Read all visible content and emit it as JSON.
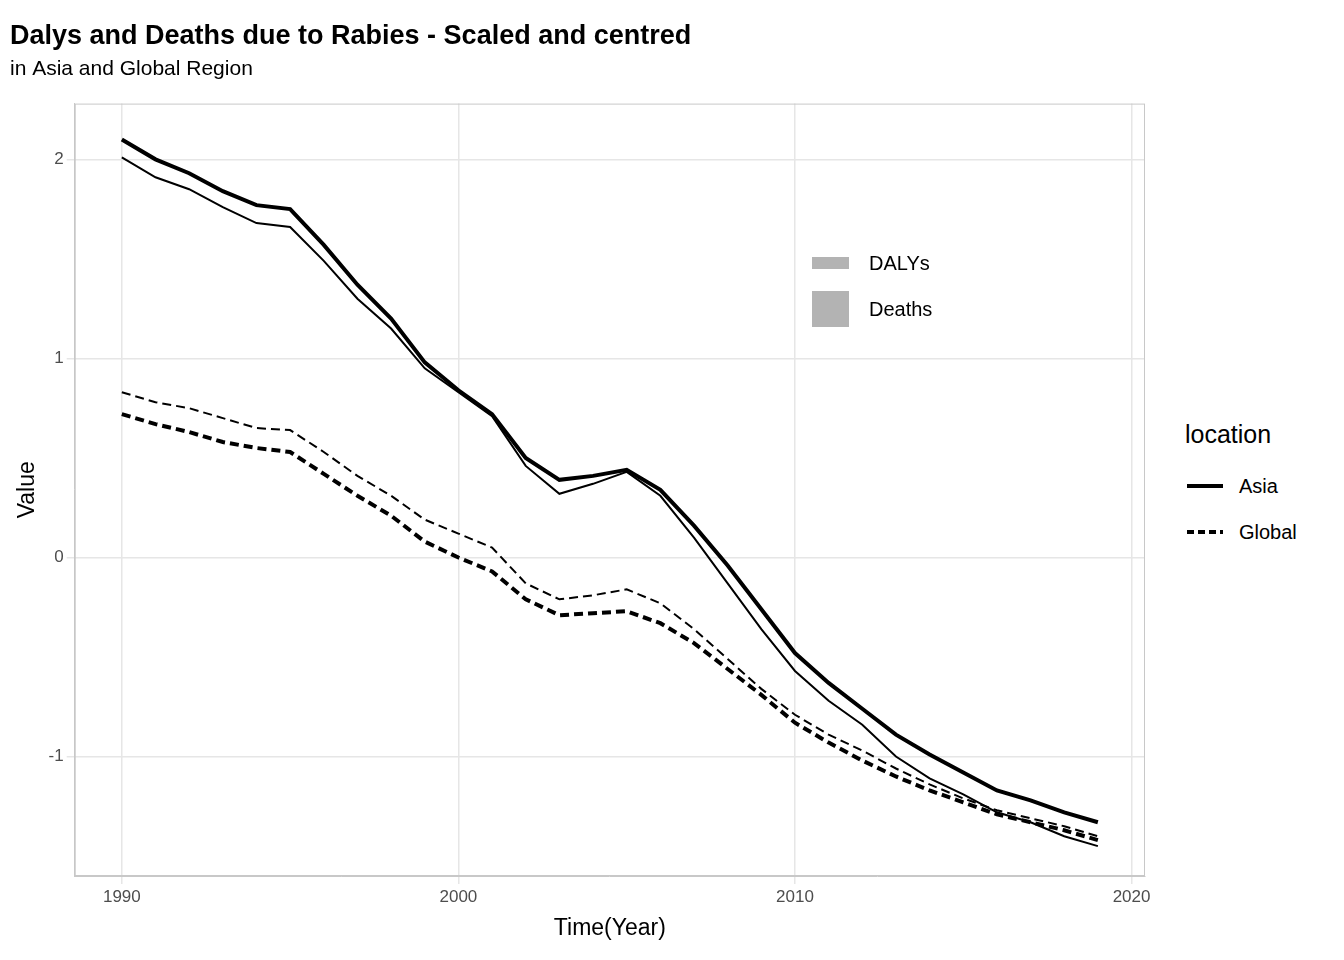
{
  "chart_data": {
    "type": "line",
    "title": "Dalys and Deaths due to Rabies - Scaled and centred",
    "subtitle": "in Asia and Global Region",
    "x_label": "Time(Year)",
    "y_label": "Value",
    "legend_title": "location",
    "legend": "right",
    "groups": [
      "DALYs",
      "Deaths"
    ],
    "x": [
      1990,
      1991,
      1992,
      1993,
      1994,
      1995,
      1996,
      1997,
      1998,
      1999,
      2000,
      2001,
      2002,
      2003,
      2004,
      2005,
      2006,
      2007,
      2008,
      2009,
      2010,
      2011,
      2012,
      2013,
      2014,
      2015,
      2016,
      2017,
      2018,
      2019
    ],
    "series": [
      {
        "name": "Asia",
        "group": "DALYs",
        "color": "#000000",
        "line_style": "solid",
        "values": [
          2.1,
          2.0,
          1.93,
          1.84,
          1.77,
          1.75,
          1.57,
          1.37,
          1.2,
          0.98,
          0.84,
          0.72,
          0.5,
          0.39,
          0.41,
          0.44,
          0.34,
          0.16,
          -0.04,
          -0.26,
          -0.48,
          -0.63,
          -0.76,
          -0.89,
          -0.99,
          -1.08,
          -1.17,
          -1.22,
          -1.28,
          -1.33
        ]
      },
      {
        "name": "Asia",
        "group": "Deaths",
        "color": "#000000",
        "line_style": "solid",
        "values": [
          2.01,
          1.91,
          1.85,
          1.76,
          1.68,
          1.66,
          1.49,
          1.3,
          1.15,
          0.95,
          0.83,
          0.71,
          0.46,
          0.32,
          0.37,
          0.43,
          0.31,
          0.1,
          -0.13,
          -0.36,
          -0.57,
          -0.72,
          -0.84,
          -1.0,
          -1.11,
          -1.19,
          -1.28,
          -1.33,
          -1.4,
          -1.45
        ]
      },
      {
        "name": "Global",
        "group": "DALYs",
        "color": "#000000",
        "line_style": "dashed",
        "values": [
          0.72,
          0.67,
          0.63,
          0.58,
          0.55,
          0.53,
          0.42,
          0.31,
          0.21,
          0.08,
          0.0,
          -0.07,
          -0.21,
          -0.29,
          -0.28,
          -0.27,
          -0.33,
          -0.43,
          -0.56,
          -0.69,
          -0.83,
          -0.93,
          -1.02,
          -1.1,
          -1.17,
          -1.23,
          -1.29,
          -1.33,
          -1.37,
          -1.42
        ]
      },
      {
        "name": "Global",
        "group": "Deaths",
        "color": "#000000",
        "line_style": "dashed",
        "values": [
          0.83,
          0.78,
          0.75,
          0.7,
          0.65,
          0.64,
          0.53,
          0.41,
          0.31,
          0.19,
          0.12,
          0.05,
          -0.13,
          -0.21,
          -0.19,
          -0.16,
          -0.23,
          -0.36,
          -0.51,
          -0.66,
          -0.79,
          -0.89,
          -0.97,
          -1.06,
          -1.14,
          -1.21,
          -1.27,
          -1.31,
          -1.35,
          -1.4
        ]
      }
    ],
    "xlim": [
      1988.6,
      2020.4
    ],
    "xticks": [
      1990,
      2000,
      2010,
      2020
    ],
    "ylim": [
      -1.6,
      2.28
    ],
    "yticks": [
      -1,
      0,
      1,
      2
    ],
    "grid": true
  }
}
